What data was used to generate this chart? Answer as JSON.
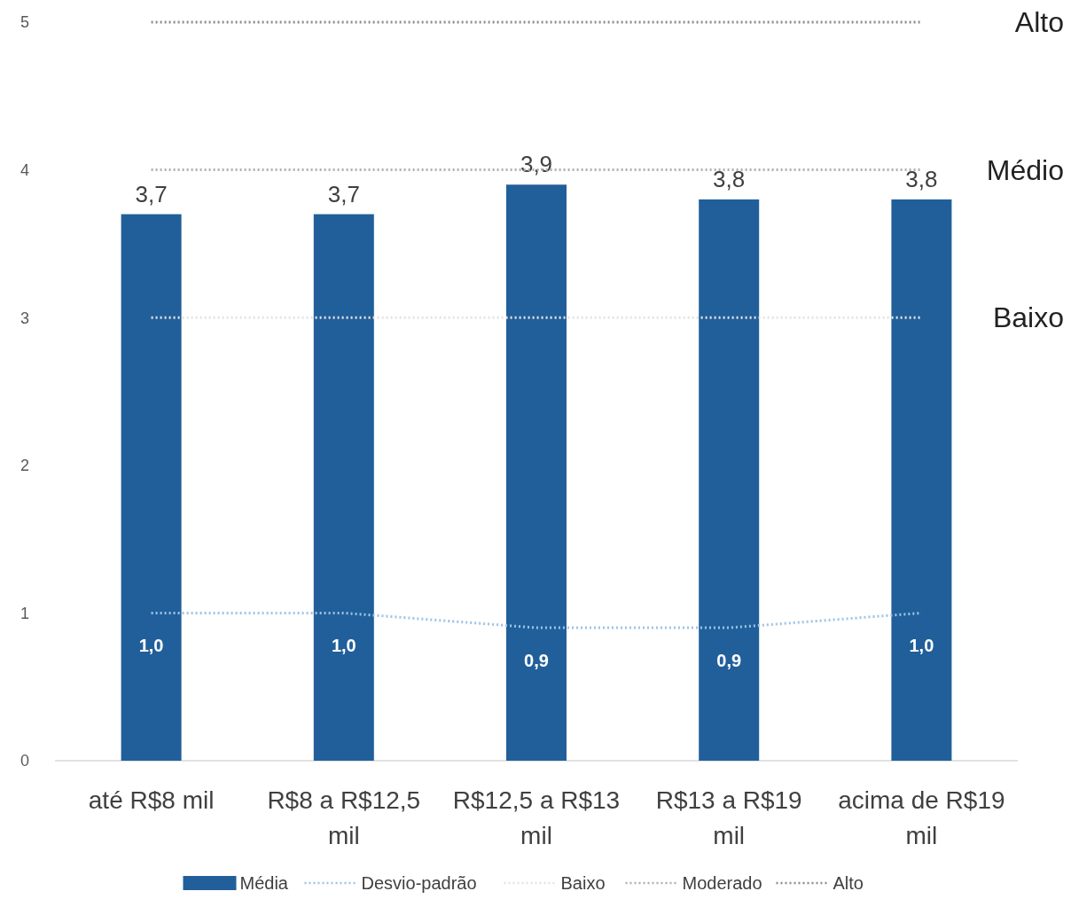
{
  "chart_data": {
    "type": "bar",
    "categories": [
      "até R$8 mil",
      "R$8 a R$12,5 mil",
      "R$12,5 a R$13 mil",
      "R$13 a R$19 mil",
      "acima de R$19 mil"
    ],
    "series": [
      {
        "name": "Média",
        "color": "#215f9a",
        "values": [
          3.7,
          3.7,
          3.9,
          3.8,
          3.8
        ],
        "value_labels": [
          "3,7",
          "3,7",
          "3,9",
          "3,8",
          "3,8"
        ]
      },
      {
        "name": "Desvio-padrão",
        "type": "line",
        "color": "#9dc3e6",
        "line_style": "dotted",
        "values": [
          1.0,
          1.0,
          0.9,
          0.9,
          1.0
        ],
        "value_labels": [
          "1,0",
          "1,0",
          "0,9",
          "0,9",
          "1,0"
        ]
      },
      {
        "name": "Baixo",
        "type": "line",
        "color": "#e3e3e3",
        "line_style": "dotted",
        "values": [
          3,
          3,
          3,
          3,
          3
        ]
      },
      {
        "name": "Moderado",
        "type": "line",
        "color": "#b0b0b0",
        "line_style": "dotted",
        "values": [
          4,
          4,
          4,
          4,
          4
        ]
      },
      {
        "name": "Alto",
        "type": "line",
        "color": "#8c8c8c",
        "line_style": "dotted",
        "values": [
          5,
          5,
          5,
          5,
          5
        ]
      }
    ],
    "ylim": [
      0,
      5
    ],
    "yticks": [
      0,
      1,
      2,
      3,
      4,
      5
    ],
    "grid": false,
    "legend": "bottom",
    "annotations": [
      "Alto",
      "Médio",
      "Baixo"
    ]
  }
}
